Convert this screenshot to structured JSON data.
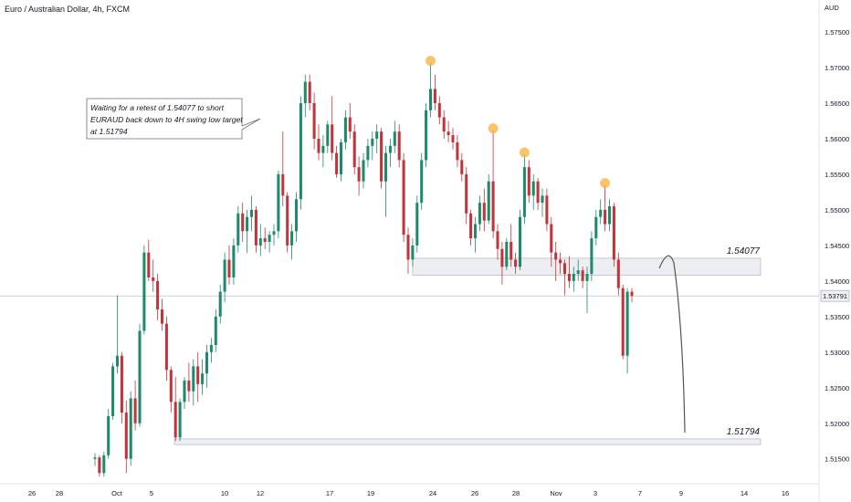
{
  "header": {
    "title": "Euro / Australian Dollar, 4h, FXCM"
  },
  "chart_data": {
    "type": "candlestick",
    "symbol": "EURAUD",
    "timeframe": "4h",
    "currency_label": "AUD",
    "y_ticks": [
      "1.57500",
      "1.57000",
      "1.56500",
      "1.56000",
      "1.55500",
      "1.55000",
      "1.54500",
      "1.54000",
      "1.53500",
      "1.53000",
      "1.52500",
      "1.52000",
      "1.51500"
    ],
    "x_ticks": [
      "26",
      "28",
      "Oct",
      "5",
      "10",
      "12",
      "17",
      "19",
      "24",
      "26",
      "28",
      "Nov",
      "3",
      "7",
      "9",
      "14",
      "16"
    ],
    "ylim": [
      1.5115,
      1.5795
    ],
    "last_price": "1.53791",
    "colors": {
      "up": "#1e8a6b",
      "down": "#c0343c",
      "highlight": "#f6b64a",
      "zone_fill": "#eceef1"
    },
    "zones": [
      {
        "label": "1.54077",
        "low": 1.5408,
        "high": 1.5432
      },
      {
        "label": "1.51794",
        "low": 1.517,
        "high": 1.5178
      }
    ],
    "annotation": "Waiting for a retest of 1.54077 to short EURAUD back down to 4H swing low target at 1.51794",
    "highlighted_highs": [
      1.5707,
      1.5612,
      1.5578,
      1.5535
    ],
    "candles": [
      [
        1.515,
        1.5158,
        1.514,
        1.5152
      ],
      [
        1.5152,
        1.5155,
        1.5125,
        1.513
      ],
      [
        1.513,
        1.516,
        1.5125,
        1.5155
      ],
      [
        1.5155,
        1.522,
        1.515,
        1.521
      ],
      [
        1.521,
        1.5285,
        1.5205,
        1.528
      ],
      [
        1.528,
        1.538,
        1.527,
        1.5295
      ],
      [
        1.5295,
        1.53,
        1.52,
        1.5215
      ],
      [
        1.5215,
        1.5232,
        1.513,
        1.515
      ],
      [
        1.515,
        1.5245,
        1.514,
        1.5235
      ],
      [
        1.5235,
        1.526,
        1.519,
        1.52
      ],
      [
        1.52,
        1.534,
        1.5195,
        1.533
      ],
      [
        1.533,
        1.545,
        1.5325,
        1.544
      ],
      [
        1.544,
        1.5458,
        1.54,
        1.5405
      ],
      [
        1.5405,
        1.543,
        1.5385,
        1.54
      ],
      [
        1.54,
        1.541,
        1.5345,
        1.536
      ],
      [
        1.536,
        1.5375,
        1.533,
        1.534
      ],
      [
        1.534,
        1.535,
        1.526,
        1.5275
      ],
      [
        1.5275,
        1.528,
        1.5215,
        1.523
      ],
      [
        1.523,
        1.5265,
        1.5175,
        1.518
      ],
      [
        1.518,
        1.5235,
        1.5175,
        1.523
      ],
      [
        1.523,
        1.5265,
        1.522,
        1.526
      ],
      [
        1.526,
        1.5285,
        1.523,
        1.5245
      ],
      [
        1.5245,
        1.529,
        1.5225,
        1.528
      ],
      [
        1.528,
        1.53,
        1.523,
        1.5255
      ],
      [
        1.5255,
        1.529,
        1.524,
        1.527
      ],
      [
        1.527,
        1.531,
        1.525,
        1.53
      ],
      [
        1.53,
        1.532,
        1.5285,
        1.531
      ],
      [
        1.531,
        1.536,
        1.53,
        1.535
      ],
      [
        1.535,
        1.5395,
        1.534,
        1.5385
      ],
      [
        1.5385,
        1.544,
        1.537,
        1.543
      ],
      [
        1.543,
        1.545,
        1.5395,
        1.5405
      ],
      [
        1.5405,
        1.546,
        1.5395,
        1.545
      ],
      [
        1.545,
        1.5505,
        1.544,
        1.5495
      ],
      [
        1.5495,
        1.551,
        1.5455,
        1.547
      ],
      [
        1.547,
        1.55,
        1.544,
        1.549
      ],
      [
        1.549,
        1.552,
        1.547,
        1.55
      ],
      [
        1.55,
        1.5505,
        1.544,
        1.545
      ],
      [
        1.545,
        1.548,
        1.5435,
        1.546
      ],
      [
        1.546,
        1.5475,
        1.5445,
        1.5455
      ],
      [
        1.5455,
        1.547,
        1.544,
        1.5465
      ],
      [
        1.5465,
        1.548,
        1.545,
        1.547
      ],
      [
        1.547,
        1.5555,
        1.546,
        1.555
      ],
      [
        1.555,
        1.561,
        1.5505,
        1.552
      ],
      [
        1.552,
        1.5525,
        1.544,
        1.545
      ],
      [
        1.545,
        1.548,
        1.543,
        1.547
      ],
      [
        1.547,
        1.5525,
        1.5455,
        1.5515
      ],
      [
        1.5515,
        1.566,
        1.55,
        1.565
      ],
      [
        1.565,
        1.569,
        1.563,
        1.568
      ],
      [
        1.568,
        1.569,
        1.564,
        1.565
      ],
      [
        1.565,
        1.5665,
        1.5585,
        1.56
      ],
      [
        1.56,
        1.562,
        1.557,
        1.558
      ],
      [
        1.558,
        1.5605,
        1.556,
        1.559
      ],
      [
        1.559,
        1.5625,
        1.558,
        1.562
      ],
      [
        1.562,
        1.566,
        1.557,
        1.558
      ],
      [
        1.558,
        1.559,
        1.5545,
        1.555
      ],
      [
        1.555,
        1.56,
        1.554,
        1.5595
      ],
      [
        1.5595,
        1.564,
        1.5585,
        1.563
      ],
      [
        1.563,
        1.565,
        1.56,
        1.561
      ],
      [
        1.561,
        1.562,
        1.555,
        1.556
      ],
      [
        1.556,
        1.5575,
        1.552,
        1.554
      ],
      [
        1.554,
        1.558,
        1.553,
        1.557
      ],
      [
        1.557,
        1.56,
        1.556,
        1.559
      ],
      [
        1.559,
        1.561,
        1.557,
        1.56
      ],
      [
        1.56,
        1.562,
        1.558,
        1.561
      ],
      [
        1.561,
        1.5615,
        1.553,
        1.554
      ],
      [
        1.554,
        1.559,
        1.549,
        1.558
      ],
      [
        1.558,
        1.56,
        1.556,
        1.559
      ],
      [
        1.559,
        1.5625,
        1.558,
        1.561
      ],
      [
        1.561,
        1.562,
        1.556,
        1.557
      ],
      [
        1.557,
        1.558,
        1.5455,
        1.5465
      ],
      [
        1.5465,
        1.5475,
        1.541,
        1.543
      ],
      [
        1.543,
        1.546,
        1.542,
        1.545
      ],
      [
        1.545,
        1.552,
        1.544,
        1.551
      ],
      [
        1.551,
        1.558,
        1.55,
        1.557
      ],
      [
        1.557,
        1.565,
        1.556,
        1.564
      ],
      [
        1.564,
        1.5707,
        1.563,
        1.567
      ],
      [
        1.567,
        1.569,
        1.564,
        1.565
      ],
      [
        1.565,
        1.566,
        1.562,
        1.563
      ],
      [
        1.563,
        1.564,
        1.56,
        1.561
      ],
      [
        1.561,
        1.5625,
        1.5595,
        1.5605
      ],
      [
        1.5605,
        1.5615,
        1.5585,
        1.5595
      ],
      [
        1.5595,
        1.5605,
        1.556,
        1.557
      ],
      [
        1.557,
        1.558,
        1.554,
        1.555
      ],
      [
        1.555,
        1.556,
        1.548,
        1.5495
      ],
      [
        1.5495,
        1.55,
        1.545,
        1.546
      ],
      [
        1.546,
        1.549,
        1.544,
        1.548
      ],
      [
        1.548,
        1.552,
        1.547,
        1.551
      ],
      [
        1.551,
        1.553,
        1.547,
        1.5485
      ],
      [
        1.5485,
        1.555,
        1.548,
        1.554
      ],
      [
        1.554,
        1.5612,
        1.546,
        1.547
      ],
      [
        1.547,
        1.548,
        1.543,
        1.5445
      ],
      [
        1.5445,
        1.5455,
        1.5395,
        1.542
      ],
      [
        1.542,
        1.546,
        1.5415,
        1.5455
      ],
      [
        1.5455,
        1.548,
        1.542,
        1.543
      ],
      [
        1.543,
        1.544,
        1.541,
        1.542
      ],
      [
        1.542,
        1.55,
        1.5415,
        1.549
      ],
      [
        1.549,
        1.5578,
        1.548,
        1.556
      ],
      [
        1.556,
        1.557,
        1.551,
        1.552
      ],
      [
        1.552,
        1.555,
        1.55,
        1.554
      ],
      [
        1.554,
        1.5545,
        1.55,
        1.551
      ],
      [
        1.551,
        1.553,
        1.549,
        1.552
      ],
      [
        1.552,
        1.553,
        1.547,
        1.548
      ],
      [
        1.548,
        1.549,
        1.542,
        1.544
      ],
      [
        1.544,
        1.5455,
        1.54,
        1.543
      ],
      [
        1.543,
        1.544,
        1.541,
        1.5425
      ],
      [
        1.5425,
        1.543,
        1.538,
        1.541
      ],
      [
        1.541,
        1.5435,
        1.539,
        1.54
      ],
      [
        1.54,
        1.542,
        1.5385,
        1.541
      ],
      [
        1.541,
        1.543,
        1.54,
        1.5415
      ],
      [
        1.5415,
        1.542,
        1.539,
        1.54
      ],
      [
        1.54,
        1.542,
        1.5355,
        1.541
      ],
      [
        1.541,
        1.547,
        1.54,
        1.546
      ],
      [
        1.546,
        1.55,
        1.545,
        1.549
      ],
      [
        1.549,
        1.5515,
        1.548,
        1.55
      ],
      [
        1.55,
        1.5535,
        1.547,
        1.548
      ],
      [
        1.548,
        1.5515,
        1.547,
        1.5505
      ],
      [
        1.5505,
        1.551,
        1.542,
        1.543
      ],
      [
        1.543,
        1.544,
        1.538,
        1.539
      ],
      [
        1.539,
        1.5395,
        1.529,
        1.5295
      ],
      [
        1.5295,
        1.539,
        1.527,
        1.5385
      ],
      [
        1.5385,
        1.539,
        1.537,
        1.5379
      ]
    ]
  }
}
